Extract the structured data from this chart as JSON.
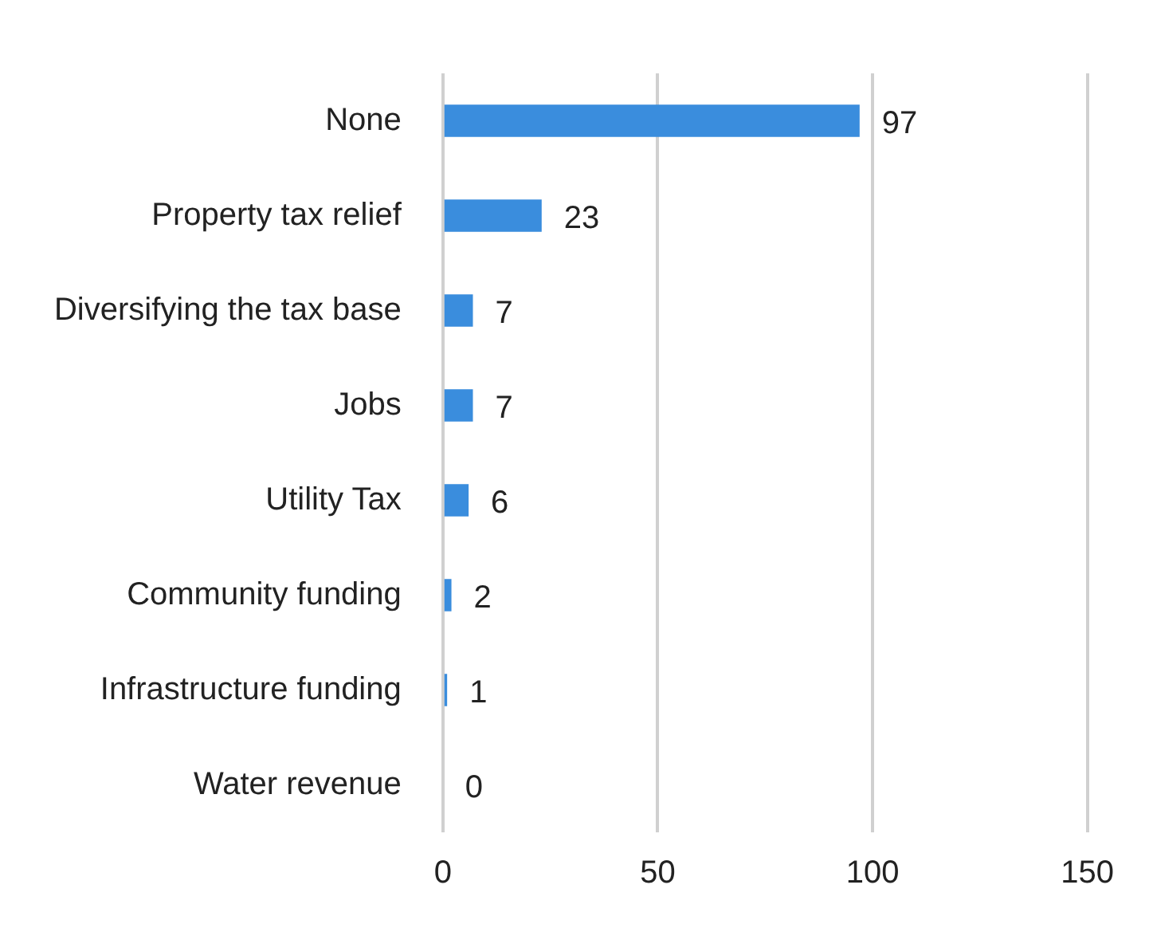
{
  "chart_data": {
    "type": "bar",
    "orientation": "horizontal",
    "categories": [
      "None",
      "Property tax relief",
      "Diversifying the tax base",
      "Jobs",
      "Utility Tax",
      "Community funding",
      "Infrastructure funding",
      "Water revenue"
    ],
    "values": [
      97,
      23,
      7,
      7,
      6,
      2,
      1,
      0
    ],
    "color": "#3a8ddd",
    "xlim": [
      0,
      150
    ],
    "xticks": [
      0,
      50,
      100,
      150
    ],
    "grid": "x",
    "data_labels": true
  }
}
